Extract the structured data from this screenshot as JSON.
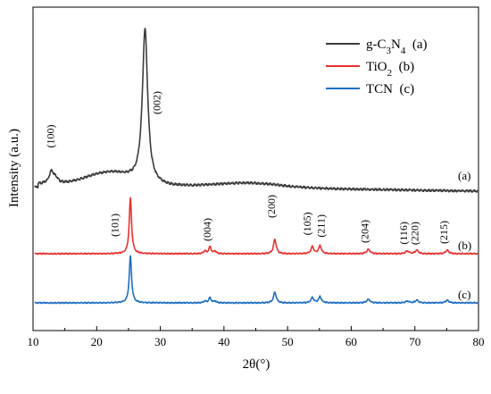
{
  "chart_data": {
    "type": "line",
    "xlabel": "2θ(°)",
    "ylabel": "Intensity (a.u.)",
    "xlim": [
      10,
      80
    ],
    "x_ticks": [
      10,
      20,
      30,
      40,
      50,
      60,
      70,
      80
    ],
    "grid": false,
    "legend_position": "top-right",
    "series": [
      {
        "name": "g-C3N4",
        "legend_parts": [
          "g-C",
          "3",
          "N",
          "4",
          "  (a)"
        ],
        "tag": "(a)",
        "color": "#3c3c3c",
        "baseline": 0,
        "peaks": [
          {
            "x": 12.9,
            "height": 14,
            "width": 0.45
          },
          {
            "x": 13.6,
            "height": 5,
            "width": 0.4
          },
          {
            "x": 27.6,
            "height": 172,
            "width": 0.5
          }
        ],
        "broad": [
          {
            "x": 22.0,
            "height": 14,
            "width": 5.0
          },
          {
            "x": 44.0,
            "height": 5,
            "width": 7.0
          }
        ],
        "slope": -8,
        "noise": 1.2
      },
      {
        "name": "TiO2",
        "legend_parts": [
          "TiO",
          "2",
          "  (b)"
        ],
        "tag": "(b)",
        "color": "#e8322e",
        "baseline": 0,
        "peaks": [
          {
            "x": 25.3,
            "height": 62,
            "width": 0.22
          },
          {
            "x": 37.0,
            "height": 3,
            "width": 0.2
          },
          {
            "x": 37.8,
            "height": 8,
            "width": 0.22
          },
          {
            "x": 38.6,
            "height": 3,
            "width": 0.2
          },
          {
            "x": 48.0,
            "height": 16,
            "width": 0.25
          },
          {
            "x": 53.9,
            "height": 8,
            "width": 0.25
          },
          {
            "x": 55.1,
            "height": 9,
            "width": 0.25
          },
          {
            "x": 62.7,
            "height": 5,
            "width": 0.3
          },
          {
            "x": 68.8,
            "height": 3,
            "width": 0.3
          },
          {
            "x": 70.3,
            "height": 4,
            "width": 0.3
          },
          {
            "x": 75.1,
            "height": 4,
            "width": 0.3
          }
        ],
        "broad": [],
        "slope": 0,
        "noise": 0.6
      },
      {
        "name": "TCN",
        "legend_parts": [
          "TCN",
          "  (c)"
        ],
        "tag": "(c)",
        "color": "#1f6fc4",
        "baseline": 0,
        "peaks": [
          {
            "x": 25.3,
            "height": 52,
            "width": 0.22
          },
          {
            "x": 37.0,
            "height": 2,
            "width": 0.2
          },
          {
            "x": 37.8,
            "height": 6,
            "width": 0.22
          },
          {
            "x": 38.6,
            "height": 2,
            "width": 0.2
          },
          {
            "x": 48.0,
            "height": 12,
            "width": 0.25
          },
          {
            "x": 53.9,
            "height": 6,
            "width": 0.25
          },
          {
            "x": 55.1,
            "height": 7,
            "width": 0.25
          },
          {
            "x": 62.7,
            "height": 4,
            "width": 0.3
          },
          {
            "x": 68.8,
            "height": 2,
            "width": 0.3
          },
          {
            "x": 70.3,
            "height": 3,
            "width": 0.3
          },
          {
            "x": 75.1,
            "height": 3,
            "width": 0.3
          }
        ],
        "broad": [],
        "slope": 0,
        "noise": 0.6
      }
    ],
    "peak_labels": [
      {
        "text": "(100)",
        "x": 13.3,
        "series": "g-C3N4"
      },
      {
        "text": "(002)",
        "x": 30.0,
        "series": "g-C3N4"
      },
      {
        "text": "(101)",
        "x": 23.4,
        "series": "TiO2"
      },
      {
        "text": "(004)",
        "x": 37.9,
        "series": "TiO2"
      },
      {
        "text": "(200)",
        "x": 48.0,
        "series": "TiO2"
      },
      {
        "text": "(105)",
        "x": 53.6,
        "series": "TiO2"
      },
      {
        "text": "(211)",
        "x": 55.8,
        "series": "TiO2"
      },
      {
        "text": "(204)",
        "x": 62.7,
        "series": "TiO2"
      },
      {
        "text": "(116)",
        "x": 68.8,
        "series": "TiO2"
      },
      {
        "text": "(220)",
        "x": 70.5,
        "series": "TiO2"
      },
      {
        "text": "(215)",
        "x": 75.1,
        "series": "TiO2"
      }
    ]
  }
}
